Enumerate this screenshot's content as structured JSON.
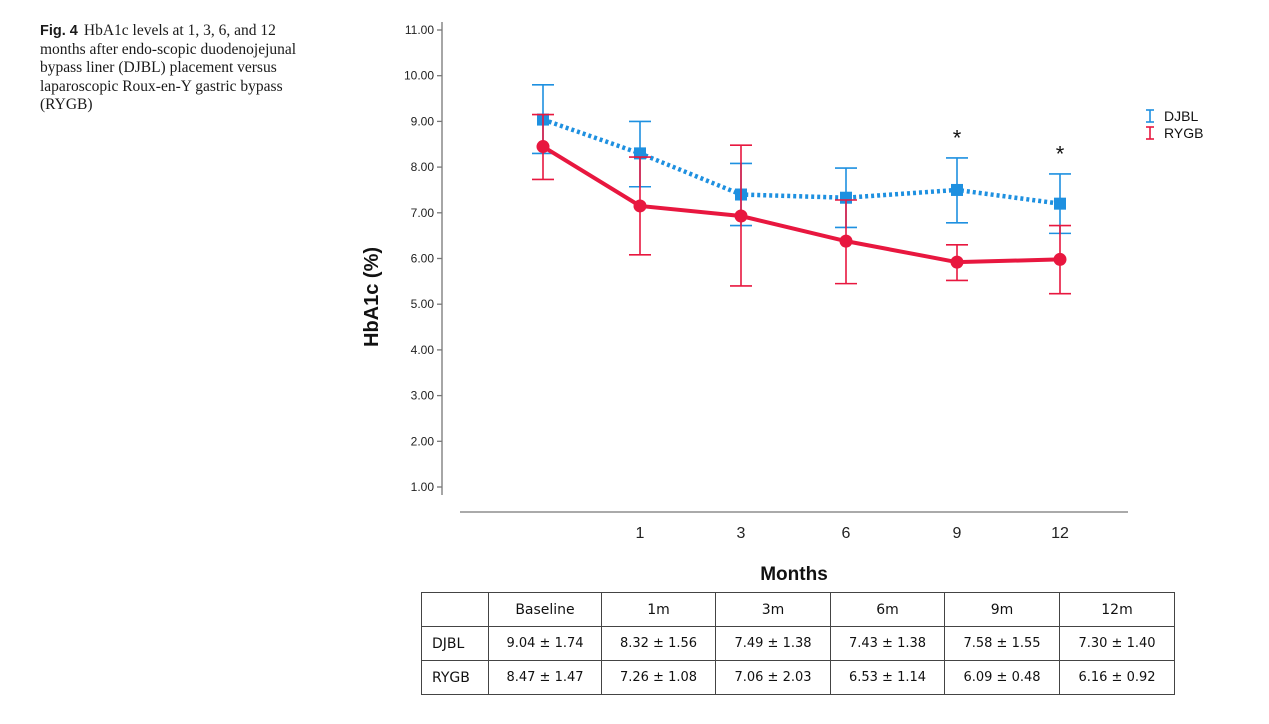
{
  "caption": {
    "label": "Fig. 4",
    "text": "HbA1c levels at 1, 3, 6, and 12 months after endo-scopic duodenojejunal bypass liner (DJBL) placement versus laparoscopic Roux-en-Y gastric bypass (RYGB)"
  },
  "chart_data": {
    "type": "line",
    "xlabel": "Months",
    "ylabel": "HbA1c (%)",
    "ylim": [
      0.5,
      11.0
    ],
    "y_ticks": [
      "1.00",
      "2.00",
      "3.00",
      "4.00",
      "5.00",
      "6.00",
      "7.00",
      "8.00",
      "9.00",
      "10.00",
      "11.00"
    ],
    "x_ticks": [
      "",
      "1",
      "3",
      "6",
      "9",
      "12"
    ],
    "grid": false,
    "legend_position": "top-right",
    "series": [
      {
        "name": "DJBL",
        "color": "#1e90e0",
        "line_style": "dotted",
        "marker": "square",
        "values": [
          9.04,
          8.3,
          7.4,
          7.33,
          7.5,
          7.2
        ],
        "error_low": [
          8.3,
          7.57,
          6.72,
          6.68,
          6.78,
          6.55
        ],
        "error_high": [
          9.8,
          9.0,
          8.08,
          7.98,
          8.2,
          7.85
        ]
      },
      {
        "name": "RYGB",
        "color": "#e8173f",
        "line_style": "solid",
        "marker": "circle",
        "values": [
          8.45,
          7.15,
          6.93,
          6.38,
          5.92,
          5.98
        ],
        "error_low": [
          7.73,
          6.08,
          5.4,
          5.45,
          5.52,
          5.23
        ],
        "error_high": [
          9.15,
          8.22,
          8.48,
          7.28,
          6.3,
          6.72
        ]
      }
    ],
    "annotations": [
      {
        "text": "*",
        "x_index": 4,
        "y": 8.65
      },
      {
        "text": "*",
        "x_index": 5,
        "y": 8.3
      }
    ]
  },
  "table": {
    "headers": [
      "",
      "Baseline",
      "1m",
      "3m",
      "6m",
      "9m",
      "12m"
    ],
    "rows": [
      {
        "label": "DJBL",
        "cells": [
          "9.04 ± 1.74",
          "8.32 ± 1.56",
          "7.49 ± 1.38",
          "7.43 ± 1.38",
          "7.58 ± 1.55",
          "7.30 ± 1.40"
        ]
      },
      {
        "label": "RYGB",
        "cells": [
          "8.47 ± 1.47",
          "7.26 ± 1.08",
          "7.06 ± 2.03",
          "6.53 ± 1.14",
          "6.09 ± 0.48",
          "6.16 ± 0.92"
        ]
      }
    ]
  }
}
